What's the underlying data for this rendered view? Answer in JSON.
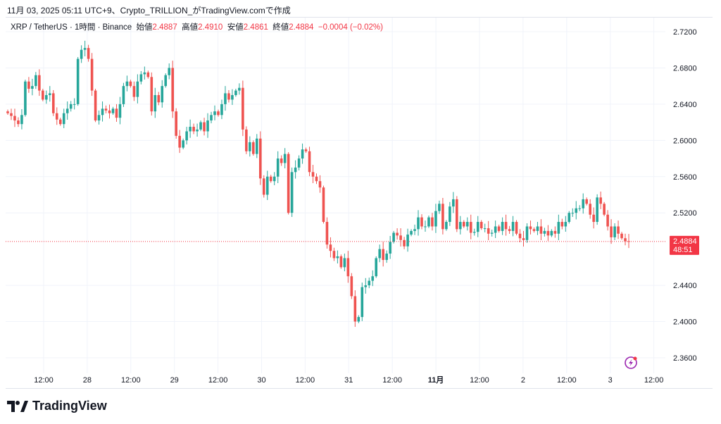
{
  "caption": "11月 03, 2025 05:11 UTC+9、Crypto_TRILLION_がTradingView.comで作成",
  "legend": {
    "symbol": "XRP / TetherUS · 1時間 · Binance",
    "open_label": "始値",
    "open": "2.4887",
    "high_label": "高値",
    "high": "2.4910",
    "low_label": "安値",
    "low": "2.4861",
    "close_label": "終値",
    "close": "2.4884",
    "change": "−0.0004 (−0.02%)"
  },
  "price_label": {
    "price": "2.4884",
    "countdown": "48:51"
  },
  "logo_text": "TradingView",
  "colors": {
    "up": "#26a69a",
    "down": "#ef5350",
    "grid": "#f0f3fa",
    "price_line": "#f23645"
  },
  "chart_data": {
    "type": "candlestick",
    "title": "XRP / TetherUS · 1時間 · Binance",
    "ylim": [
      2.345,
      2.735
    ],
    "y_ticks": [
      "2.7200",
      "2.6800",
      "2.6400",
      "2.6000",
      "2.5600",
      "2.5200",
      "2.4400",
      "2.4000",
      "2.3600"
    ],
    "x_ticks": [
      "12:00",
      "28",
      "12:00",
      "29",
      "12:00",
      "30",
      "12:00",
      "31",
      "12:00",
      "11月",
      "12:00",
      "2",
      "12:00",
      "3",
      "12:00"
    ],
    "first_open": 2.632,
    "closes": [
      2.63,
      2.627,
      2.622,
      2.618,
      2.628,
      2.665,
      2.657,
      2.66,
      2.672,
      2.655,
      2.645,
      2.65,
      2.652,
      2.63,
      2.623,
      2.618,
      2.63,
      2.635,
      2.64,
      2.64,
      2.69,
      2.7,
      2.702,
      2.69,
      2.655,
      2.622,
      2.628,
      2.635,
      2.633,
      2.63,
      2.635,
      2.625,
      2.64,
      2.66,
      2.665,
      2.66,
      2.648,
      2.665,
      2.673,
      2.675,
      2.67,
      2.632,
      2.65,
      2.642,
      2.66,
      2.672,
      2.68,
      2.632,
      2.605,
      2.592,
      2.6,
      2.61,
      2.615,
      2.61,
      2.612,
      2.62,
      2.61,
      2.622,
      2.628,
      2.632,
      2.628,
      2.64,
      2.652,
      2.645,
      2.65,
      2.655,
      2.658,
      2.612,
      2.588,
      2.598,
      2.585,
      2.602,
      2.558,
      2.54,
      2.56,
      2.555,
      2.56,
      2.58,
      2.575,
      2.585,
      2.52,
      2.565,
      2.57,
      2.58,
      2.59,
      2.588,
      2.565,
      2.56,
      2.555,
      2.548,
      2.51,
      2.485,
      2.478,
      2.47,
      2.472,
      2.46,
      2.47,
      2.45,
      2.428,
      2.4,
      2.405,
      2.438,
      2.44,
      2.445,
      2.45,
      2.47,
      2.48,
      2.468,
      2.475,
      2.488,
      2.498,
      2.495,
      2.49,
      2.483,
      2.496,
      2.5,
      2.502,
      2.515,
      2.505,
      2.505,
      2.515,
      2.505,
      2.522,
      2.53,
      2.502,
      2.51,
      2.527,
      2.535,
      2.502,
      2.51,
      2.505,
      2.51,
      2.498,
      2.499,
      2.51,
      2.503,
      2.503,
      2.497,
      2.498,
      2.505,
      2.5,
      2.51,
      2.502,
      2.5,
      2.51,
      2.497,
      2.492,
      2.49,
      2.505,
      2.502,
      2.5,
      2.505,
      2.497,
      2.5,
      2.495,
      2.5,
      2.497,
      2.51,
      2.505,
      2.51,
      2.52,
      2.52,
      2.525,
      2.525,
      2.535,
      2.53,
      2.518,
      2.51,
      2.537,
      2.53,
      2.518,
      2.505,
      2.493,
      2.505,
      2.497,
      2.492,
      2.4887,
      2.4884
    ],
    "last_price": 2.4884
  }
}
